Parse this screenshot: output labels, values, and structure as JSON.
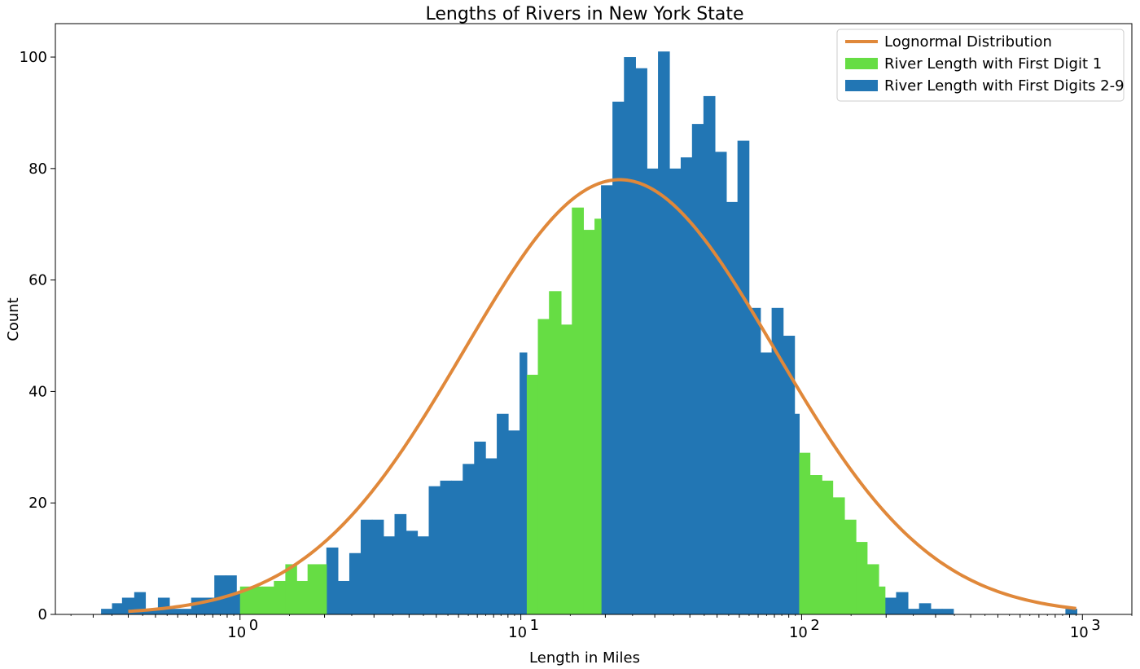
{
  "chart_data": {
    "type": "bar",
    "title": "Lengths of Rivers in New York State",
    "xlabel": "Length in Miles",
    "ylabel": "Count",
    "x_scale": "log",
    "xlim": [
      0.22,
      1500
    ],
    "ylim": [
      0,
      106
    ],
    "y_ticks": [
      0,
      20,
      40,
      60,
      80,
      100
    ],
    "y_tick_labels": [
      "0",
      "20",
      "40",
      "60",
      "80",
      "100"
    ],
    "x_ticks": [
      1,
      10,
      100,
      1000
    ],
    "x_tick_labels": [
      {
        "base": "10",
        "exp": "0"
      },
      {
        "base": "10",
        "exp": "1"
      },
      {
        "base": "10",
        "exp": "2"
      },
      {
        "base": "10",
        "exp": "3"
      }
    ],
    "legend_position": "top-right",
    "colors": {
      "lognormal": "#e0883a",
      "first_digit_1": "#66dd44",
      "first_digits_2_9": "#2276b4"
    },
    "series": [
      {
        "name": "River Length with First Digits 2-9",
        "kind": "bars",
        "color": "#2276b4",
        "bins": [
          [
            0.32,
            0.35,
            1
          ],
          [
            0.35,
            0.38,
            2
          ],
          [
            0.38,
            0.42,
            3
          ],
          [
            0.42,
            0.46,
            4
          ],
          [
            0.46,
            0.51,
            1
          ],
          [
            0.51,
            0.56,
            3
          ],
          [
            0.56,
            0.61,
            1
          ],
          [
            0.61,
            0.67,
            1
          ],
          [
            0.67,
            0.74,
            3
          ],
          [
            0.74,
            0.81,
            3
          ],
          [
            0.81,
            0.89,
            7
          ],
          [
            0.89,
            0.97,
            7
          ],
          [
            0.97,
            1.0,
            4
          ],
          [
            2.03,
            2.23,
            12
          ],
          [
            2.23,
            2.45,
            6
          ],
          [
            2.45,
            2.69,
            11
          ],
          [
            2.69,
            2.95,
            17
          ],
          [
            2.95,
            3.24,
            17
          ],
          [
            3.24,
            3.55,
            14
          ],
          [
            3.55,
            3.9,
            18
          ],
          [
            3.9,
            4.28,
            15
          ],
          [
            4.28,
            4.7,
            14
          ],
          [
            4.7,
            5.16,
            23
          ],
          [
            5.16,
            5.66,
            24
          ],
          [
            5.66,
            6.21,
            24
          ],
          [
            6.21,
            6.82,
            27
          ],
          [
            6.82,
            7.48,
            31
          ],
          [
            7.48,
            8.21,
            28
          ],
          [
            8.21,
            9.01,
            36
          ],
          [
            9.01,
            9.9,
            33
          ],
          [
            9.9,
            10.5,
            47
          ],
          [
            19.3,
            21.2,
            77
          ],
          [
            21.2,
            23.3,
            92
          ],
          [
            23.3,
            25.6,
            100
          ],
          [
            25.6,
            28.1,
            98
          ],
          [
            28.1,
            30.8,
            80
          ],
          [
            30.8,
            33.8,
            101
          ],
          [
            33.8,
            37.1,
            80
          ],
          [
            37.1,
            40.7,
            82
          ],
          [
            40.7,
            44.7,
            88
          ],
          [
            44.7,
            49.1,
            93
          ],
          [
            49.1,
            53.9,
            83
          ],
          [
            53.9,
            59.1,
            74
          ],
          [
            59.1,
            64.9,
            85
          ],
          [
            64.9,
            71.3,
            55
          ],
          [
            71.3,
            78.2,
            47
          ],
          [
            78.2,
            85.9,
            55
          ],
          [
            85.9,
            94.3,
            50
          ],
          [
            94.3,
            98.0,
            36
          ],
          [
            198,
            217,
            3
          ],
          [
            217,
            239,
            4
          ],
          [
            239,
            262,
            1
          ],
          [
            262,
            288,
            2
          ],
          [
            288,
            316,
            1
          ],
          [
            316,
            347,
            1
          ],
          [
            870,
            955,
            1
          ]
        ]
      },
      {
        "name": "River Length with First Digit 1",
        "kind": "bars",
        "color": "#66dd44",
        "bins": [
          [
            1.0,
            1.09,
            5
          ],
          [
            1.09,
            1.2,
            5
          ],
          [
            1.2,
            1.32,
            5
          ],
          [
            1.32,
            1.45,
            6
          ],
          [
            1.45,
            1.59,
            9
          ],
          [
            1.59,
            1.74,
            6
          ],
          [
            1.74,
            1.91,
            9
          ],
          [
            1.91,
            2.03,
            9
          ],
          [
            10.5,
            11.5,
            43
          ],
          [
            11.5,
            12.6,
            53
          ],
          [
            12.6,
            13.9,
            58
          ],
          [
            13.9,
            15.2,
            52
          ],
          [
            15.2,
            16.7,
            73
          ],
          [
            16.7,
            18.3,
            69
          ],
          [
            18.3,
            19.3,
            71
          ],
          [
            98.0,
            107,
            29
          ],
          [
            107,
            118,
            25
          ],
          [
            118,
            129,
            24
          ],
          [
            129,
            142,
            21
          ],
          [
            142,
            156,
            17
          ],
          [
            156,
            171,
            13
          ],
          [
            171,
            188,
            9
          ],
          [
            188,
            198,
            5
          ]
        ]
      },
      {
        "name": "Lognormal Distribution",
        "kind": "curve",
        "color": "#e0883a",
        "peak_x": 22.5,
        "peak_y": 78,
        "log10_sigma": 0.555,
        "x_range": [
          0.4,
          950
        ]
      }
    ],
    "legend": [
      {
        "label": "Lognormal Distribution",
        "swatch": "line",
        "color": "#e0883a"
      },
      {
        "label": "River Length with First Digit 1",
        "swatch": "patch",
        "color": "#66dd44"
      },
      {
        "label": "River Length with First Digits 2-9",
        "swatch": "patch",
        "color": "#2276b4"
      }
    ]
  }
}
